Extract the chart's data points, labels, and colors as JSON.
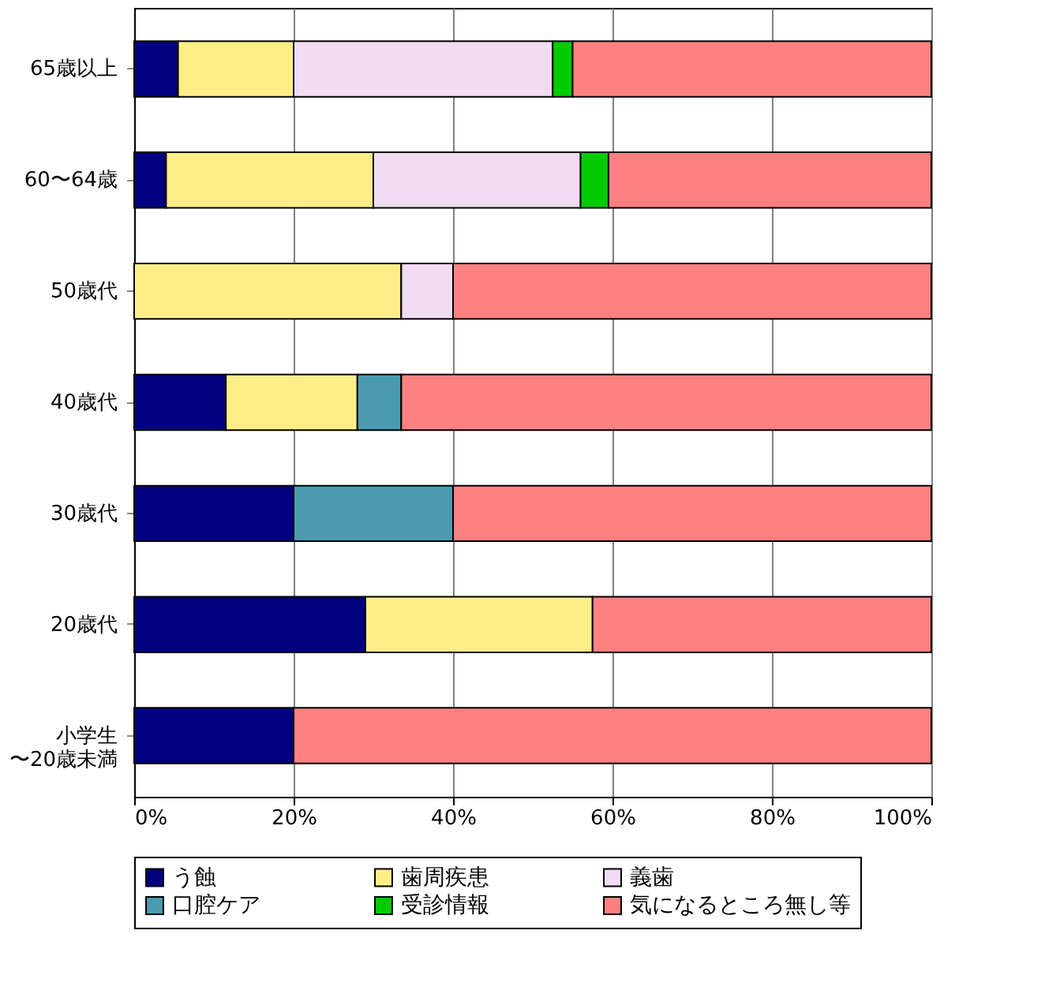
{
  "chart_data": {
    "type": "bar",
    "orientation": "horizontal",
    "stacked": true,
    "categories": [
      "65歳以上",
      "60〜64歳",
      "50歳代",
      "40歳代",
      "30歳代",
      "20歳代",
      "小学生〜20歳未満"
    ],
    "series": [
      {
        "name": "う蝕",
        "color": "#000080",
        "values": [
          5.5,
          4,
          null,
          11.5,
          20,
          29,
          20
        ]
      },
      {
        "name": "歯周疾患",
        "color": "#ffee88",
        "values": [
          14.5,
          26,
          33.5,
          16.5,
          null,
          28.5,
          null
        ]
      },
      {
        "name": "義歯",
        "color": "#f2dcf2",
        "values": [
          32.5,
          26,
          6.5,
          null,
          null,
          null,
          null
        ]
      },
      {
        "name": "口腔ケア",
        "color": "#4a9bb0",
        "values": [
          null,
          null,
          null,
          5.5,
          20,
          null,
          null
        ]
      },
      {
        "name": "受診情報",
        "color": "#00cc00",
        "values": [
          2.5,
          3.5,
          null,
          null,
          null,
          null,
          null
        ]
      },
      {
        "name": "気になるところ無し等",
        "color": "#ff8080",
        "values": [
          45,
          40.5,
          60,
          66.5,
          60,
          42.5,
          80
        ]
      }
    ],
    "xlim": [
      0,
      100
    ],
    "xticks": [
      {
        "value": 0,
        "label": "0%"
      },
      {
        "value": 20,
        "label": "20%"
      },
      {
        "value": 40,
        "label": "40%"
      },
      {
        "value": 60,
        "label": "60%"
      },
      {
        "value": 80,
        "label": "80%"
      },
      {
        "value": 100,
        "label": "100%"
      }
    ],
    "grid": "x",
    "legend": "bottom"
  }
}
